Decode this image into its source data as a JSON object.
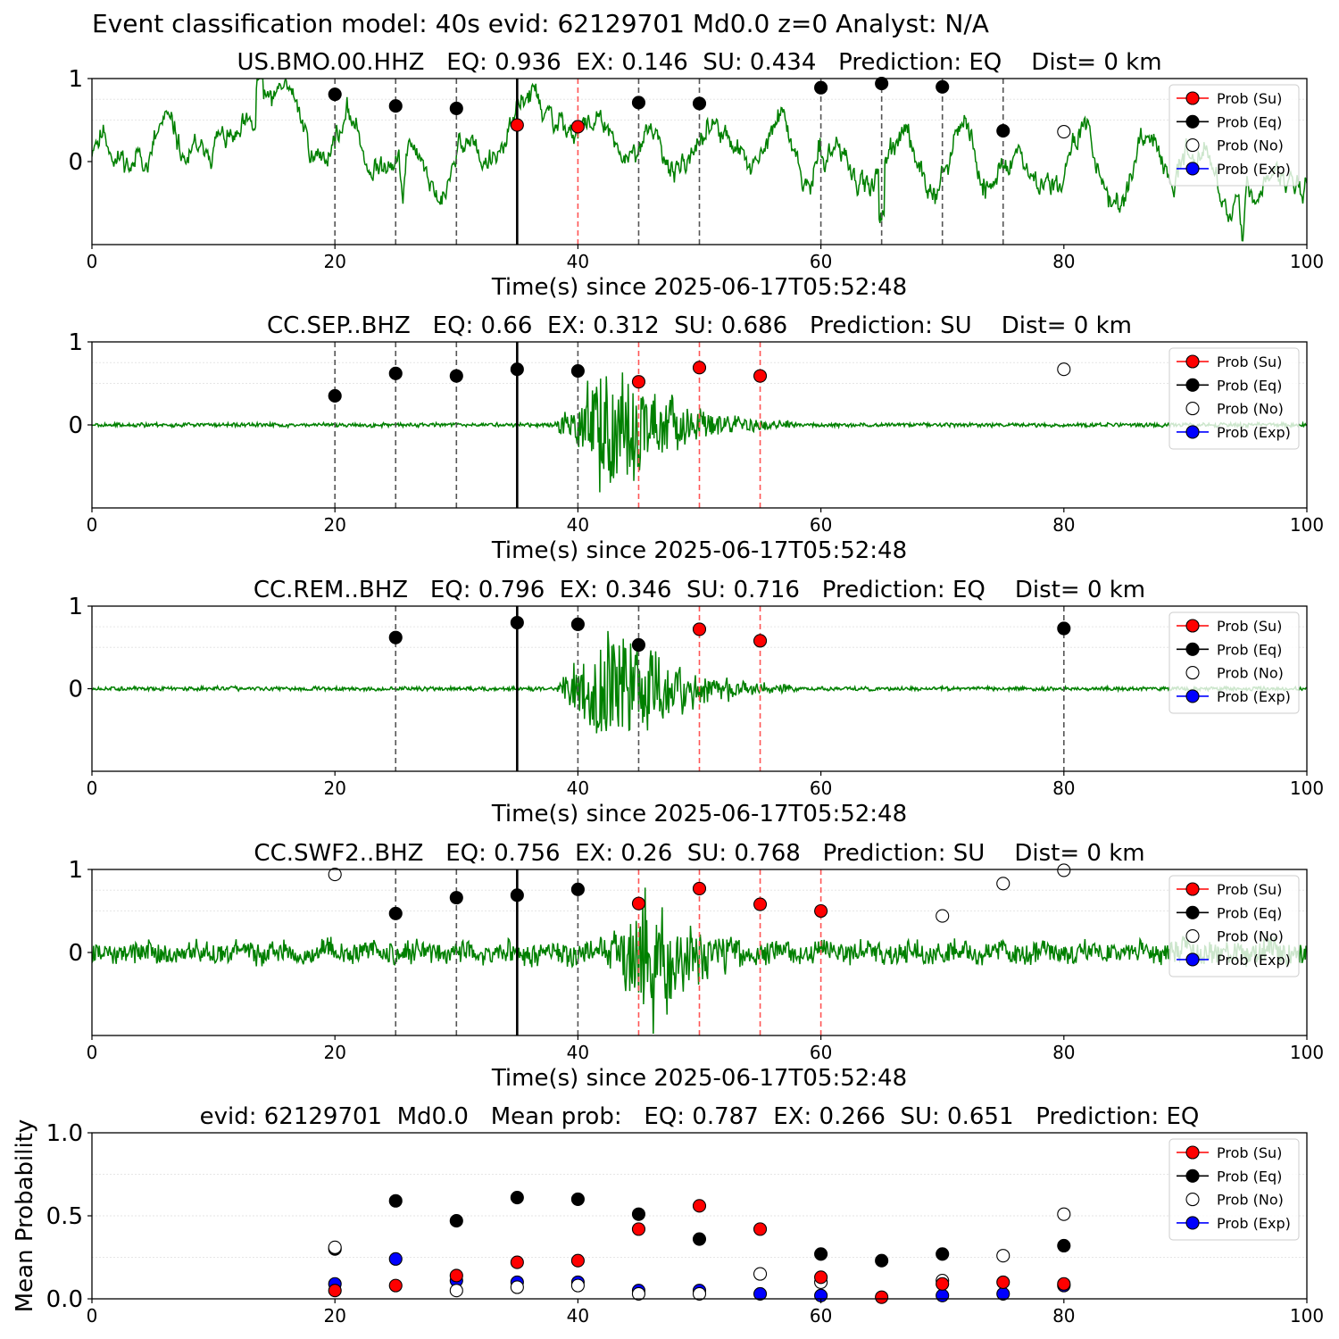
{
  "suptitle": "Event classification model: 40s evid: 62129701 Md0.0 z=0 Analyst: N/A",
  "legend": {
    "items": [
      {
        "label": "Prob (Su)",
        "color": "#ff0000"
      },
      {
        "label": "Prob (Eq)",
        "color": "#000000"
      },
      {
        "label": "Prob (No)",
        "color": "#ffffff"
      },
      {
        "label": "Prob (Exp)",
        "color": "#0000ff"
      }
    ],
    "placement": "top-right"
  },
  "chart_data": [
    {
      "type": "line",
      "title": "US.BMO.00.HHZ   EQ: 0.936  EX: 0.146  SU: 0.434   Prediction: EQ    Dist= 0 km",
      "xlabel": "Time(s) since 2025-06-17T05:52:48",
      "ylabel": "",
      "xlim": [
        0,
        100
      ],
      "ylim": [
        -1,
        1
      ],
      "xticks": [
        "0",
        "20",
        "40",
        "60",
        "80",
        "100"
      ],
      "yticks": [
        "1",
        "0"
      ],
      "waveform": {
        "style": "noisy",
        "color": "#008000",
        "seed": 11
      },
      "event_line": 35,
      "markers": [
        {
          "x": 20,
          "y": 0.81,
          "class": "Eq",
          "line": "black"
        },
        {
          "x": 25,
          "y": 0.67,
          "class": "Eq",
          "line": "black"
        },
        {
          "x": 30,
          "y": 0.64,
          "class": "Eq",
          "line": "black"
        },
        {
          "x": 35,
          "y": 0.44,
          "class": "Su",
          "line": "none"
        },
        {
          "x": 40,
          "y": 0.42,
          "class": "Su",
          "line": "red"
        },
        {
          "x": 45,
          "y": 0.71,
          "class": "Eq",
          "line": "black"
        },
        {
          "x": 50,
          "y": 0.7,
          "class": "Eq",
          "line": "black"
        },
        {
          "x": 60,
          "y": 0.89,
          "class": "Eq",
          "line": "black"
        },
        {
          "x": 65,
          "y": 0.94,
          "class": "Eq",
          "line": "black"
        },
        {
          "x": 70,
          "y": 0.9,
          "class": "Eq",
          "line": "black"
        },
        {
          "x": 75,
          "y": 0.37,
          "class": "Eq",
          "line": "black"
        },
        {
          "x": 80,
          "y": 0.36,
          "class": "No",
          "line": "none"
        }
      ]
    },
    {
      "type": "line",
      "title": "CC.SEP..BHZ   EQ: 0.66  EX: 0.312  SU: 0.686   Prediction: SU    Dist= 0 km",
      "xlabel": "Time(s) since 2025-06-17T05:52:48",
      "ylabel": "",
      "xlim": [
        0,
        100
      ],
      "ylim": [
        -1,
        1
      ],
      "xticks": [
        "0",
        "20",
        "40",
        "60",
        "80",
        "100"
      ],
      "yticks": [
        "1",
        "0"
      ],
      "waveform": {
        "style": "burst",
        "color": "#008000",
        "seed": 23,
        "burst_start": 38,
        "burst_peak": 43,
        "burst_end": 58
      },
      "event_line": 35,
      "markers": [
        {
          "x": 20,
          "y": 0.35,
          "class": "Eq",
          "line": "black"
        },
        {
          "x": 25,
          "y": 0.62,
          "class": "Eq",
          "line": "black"
        },
        {
          "x": 30,
          "y": 0.59,
          "class": "Eq",
          "line": "black"
        },
        {
          "x": 35,
          "y": 0.67,
          "class": "Eq",
          "line": "none"
        },
        {
          "x": 40,
          "y": 0.65,
          "class": "Eq",
          "line": "black"
        },
        {
          "x": 45,
          "y": 0.52,
          "class": "Su",
          "line": "red"
        },
        {
          "x": 50,
          "y": 0.69,
          "class": "Su",
          "line": "red"
        },
        {
          "x": 55,
          "y": 0.59,
          "class": "Su",
          "line": "red"
        },
        {
          "x": 80,
          "y": 0.67,
          "class": "No",
          "line": "none"
        }
      ]
    },
    {
      "type": "line",
      "title": "CC.REM..BHZ   EQ: 0.796  EX: 0.346  SU: 0.716   Prediction: EQ    Dist= 0 km",
      "xlabel": "Time(s) since 2025-06-17T05:52:48",
      "ylabel": "",
      "xlim": [
        0,
        100
      ],
      "ylim": [
        -1,
        1
      ],
      "xticks": [
        "0",
        "20",
        "40",
        "60",
        "80",
        "100"
      ],
      "yticks": [
        "1",
        "0"
      ],
      "waveform": {
        "style": "burst",
        "color": "#008000",
        "seed": 37,
        "burst_start": 38,
        "burst_peak": 43,
        "burst_end": 58
      },
      "event_line": 35,
      "markers": [
        {
          "x": 25,
          "y": 0.62,
          "class": "Eq",
          "line": "black"
        },
        {
          "x": 35,
          "y": 0.8,
          "class": "Eq",
          "line": "none"
        },
        {
          "x": 40,
          "y": 0.78,
          "class": "Eq",
          "line": "black"
        },
        {
          "x": 45,
          "y": 0.53,
          "class": "Eq",
          "line": "black"
        },
        {
          "x": 50,
          "y": 0.72,
          "class": "Su",
          "line": "red"
        },
        {
          "x": 55,
          "y": 0.58,
          "class": "Su",
          "line": "red"
        },
        {
          "x": 80,
          "y": 0.73,
          "class": "Eq",
          "line": "black"
        }
      ]
    },
    {
      "type": "line",
      "title": "CC.SWF2..BHZ   EQ: 0.756  EX: 0.26  SU: 0.768   Prediction: SU    Dist= 0 km",
      "xlabel": "Time(s) since 2025-06-17T05:52:48",
      "ylabel": "",
      "xlim": [
        0,
        100
      ],
      "ylim": [
        -1,
        1
      ],
      "xticks": [
        "0",
        "20",
        "40",
        "60",
        "80",
        "100"
      ],
      "yticks": [
        "1",
        "0"
      ],
      "waveform": {
        "style": "burst_noisy",
        "color": "#008000",
        "seed": 53,
        "burst_start": 42,
        "burst_peak": 46,
        "burst_end": 58
      },
      "event_line": 35,
      "markers": [
        {
          "x": 20,
          "y": 0.94,
          "class": "No",
          "line": "none"
        },
        {
          "x": 25,
          "y": 0.47,
          "class": "Eq",
          "line": "black"
        },
        {
          "x": 30,
          "y": 0.66,
          "class": "Eq",
          "line": "black"
        },
        {
          "x": 35,
          "y": 0.69,
          "class": "Eq",
          "line": "none"
        },
        {
          "x": 40,
          "y": 0.76,
          "class": "Eq",
          "line": "black"
        },
        {
          "x": 45,
          "y": 0.59,
          "class": "Su",
          "line": "red"
        },
        {
          "x": 50,
          "y": 0.77,
          "class": "Su",
          "line": "red"
        },
        {
          "x": 55,
          "y": 0.58,
          "class": "Su",
          "line": "red"
        },
        {
          "x": 60,
          "y": 0.5,
          "class": "Su",
          "line": "red"
        },
        {
          "x": 70,
          "y": 0.44,
          "class": "No",
          "line": "none"
        },
        {
          "x": 75,
          "y": 0.83,
          "class": "No",
          "line": "none"
        },
        {
          "x": 80,
          "y": 0.99,
          "class": "No",
          "line": "none"
        }
      ]
    },
    {
      "type": "scatter",
      "title": "evid: 62129701  Md0.0   Mean prob:   EQ: 0.787  EX: 0.266  SU: 0.651   Prediction: EQ",
      "xlabel": "",
      "ylabel": "Mean Probability",
      "xlim": [
        0,
        100
      ],
      "ylim": [
        0,
        1
      ],
      "xticks": [
        "0",
        "20",
        "40",
        "60",
        "80",
        "100"
      ],
      "yticks": [
        "1.0",
        "0.5",
        "0.0"
      ],
      "series": [
        {
          "name": "Prob (Eq)",
          "class": "Eq",
          "x": [
            20,
            25,
            30,
            35,
            40,
            45,
            50,
            60,
            65,
            70,
            80
          ],
          "y": [
            0.3,
            0.59,
            0.47,
            0.61,
            0.6,
            0.51,
            0.36,
            0.27,
            0.23,
            0.27,
            0.32
          ]
        },
        {
          "name": "Prob (Exp)",
          "class": "Exp",
          "x": [
            20,
            25,
            30,
            35,
            40,
            45,
            50,
            55,
            60,
            70,
            75,
            80
          ],
          "y": [
            0.09,
            0.24,
            0.11,
            0.1,
            0.1,
            0.05,
            0.05,
            0.03,
            0.02,
            0.02,
            0.03,
            0.08
          ]
        },
        {
          "name": "Prob (No)",
          "class": "No",
          "x": [
            20,
            30,
            35,
            40,
            45,
            50,
            55,
            60,
            70,
            75,
            80
          ],
          "y": [
            0.31,
            0.05,
            0.07,
            0.08,
            0.03,
            0.03,
            0.15,
            0.1,
            0.11,
            0.26,
            0.51
          ]
        },
        {
          "name": "Prob (Su)",
          "class": "Su",
          "x": [
            20,
            25,
            30,
            35,
            40,
            45,
            50,
            55,
            60,
            65,
            70,
            75,
            80
          ],
          "y": [
            0.05,
            0.08,
            0.14,
            0.22,
            0.23,
            0.42,
            0.56,
            0.42,
            0.13,
            0.01,
            0.09,
            0.1,
            0.09
          ]
        }
      ]
    }
  ]
}
